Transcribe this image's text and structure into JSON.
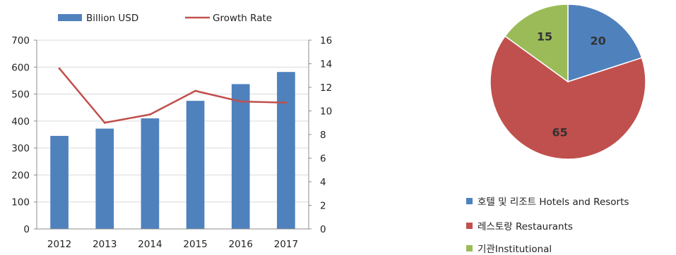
{
  "colors": {
    "bar": "#4f81bd",
    "line": "#c0504d",
    "pie_hotels": "#4f81bd",
    "pie_restaurants": "#c0504d",
    "pie_institutional": "#9bbb59",
    "grid": "#d9d9d9",
    "axis": "#8c8c8c"
  },
  "chart_data": [
    {
      "type": "bar",
      "categories": [
        "2012",
        "2013",
        "2014",
        "2015",
        "2016",
        "2017"
      ],
      "series": [
        {
          "name": "Billion USD",
          "type": "bar",
          "axis": "left",
          "values": [
            345,
            372,
            410,
            475,
            537,
            582
          ]
        },
        {
          "name": "Growth Rate",
          "type": "line",
          "axis": "right",
          "values": [
            13.6,
            9.0,
            9.7,
            11.7,
            10.8,
            10.7
          ]
        }
      ],
      "ylim": [
        0,
        700
      ],
      "yticks": [
        "0",
        "100",
        "200",
        "300",
        "400",
        "500",
        "600",
        "700"
      ],
      "y2lim": [
        0,
        16
      ],
      "y2ticks": [
        "0",
        "2",
        "4",
        "6",
        "8",
        "10",
        "12",
        "14",
        "16"
      ],
      "grid": true,
      "legend": "top"
    },
    {
      "type": "pie",
      "slices": [
        {
          "label": "호텔 및 리조트 Hotels and Resorts",
          "value": 20,
          "display": "20",
          "color": "#4f81bd"
        },
        {
          "label": "레스토랑 Restaurants",
          "value": 65,
          "display": "65",
          "color": "#c0504d"
        },
        {
          "label": "기관Institutional",
          "value": 15,
          "display": "15",
          "color": "#9bbb59"
        }
      ],
      "legend": "bottom"
    }
  ]
}
